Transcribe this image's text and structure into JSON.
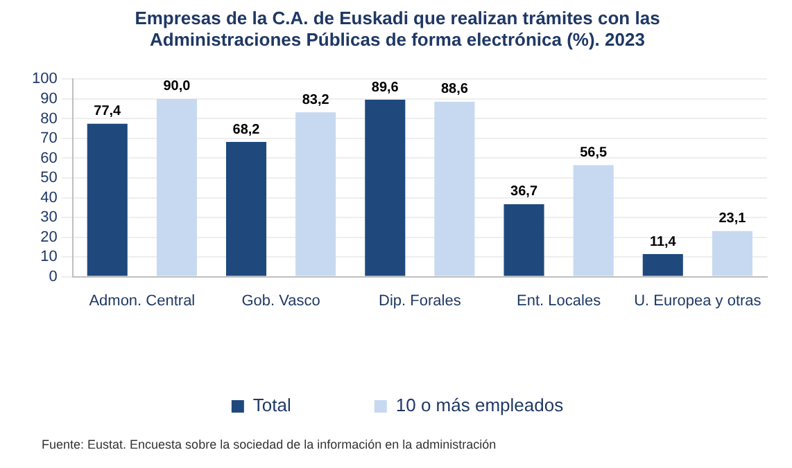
{
  "chart_data": {
    "type": "bar",
    "title": "Empresas de la C.A. de Euskadi que realizan trámites con las\nAdministraciones Públicas de forma electrónica (%). 2023",
    "categories": [
      "Admon. Central",
      "Gob. Vasco",
      "Dip. Forales",
      "Ent. Locales",
      "U. Europea y otras"
    ],
    "series": [
      {
        "name": "Total",
        "color": "#1f497d",
        "values": [
          77.4,
          68.2,
          89.6,
          36.7,
          11.4
        ],
        "value_labels": [
          "77,4",
          "68,2",
          "89,6",
          "36,7",
          "11,4"
        ]
      },
      {
        "name": "10 o más empleados",
        "color": "#c6d9f1",
        "values": [
          90.0,
          83.2,
          88.6,
          56.5,
          23.1
        ],
        "value_labels": [
          "90,0",
          "83,2",
          "88,6",
          "56,5",
          "23,1"
        ]
      }
    ],
    "ylim": [
      0,
      100
    ],
    "yticks": [
      0,
      10,
      20,
      30,
      40,
      50,
      60,
      70,
      80,
      90,
      100
    ],
    "grid": "y",
    "legend": "bottom",
    "annotations": [
      "Fuente: Eustat. Encuesta sobre la sociedad de la información en la administración"
    ]
  }
}
